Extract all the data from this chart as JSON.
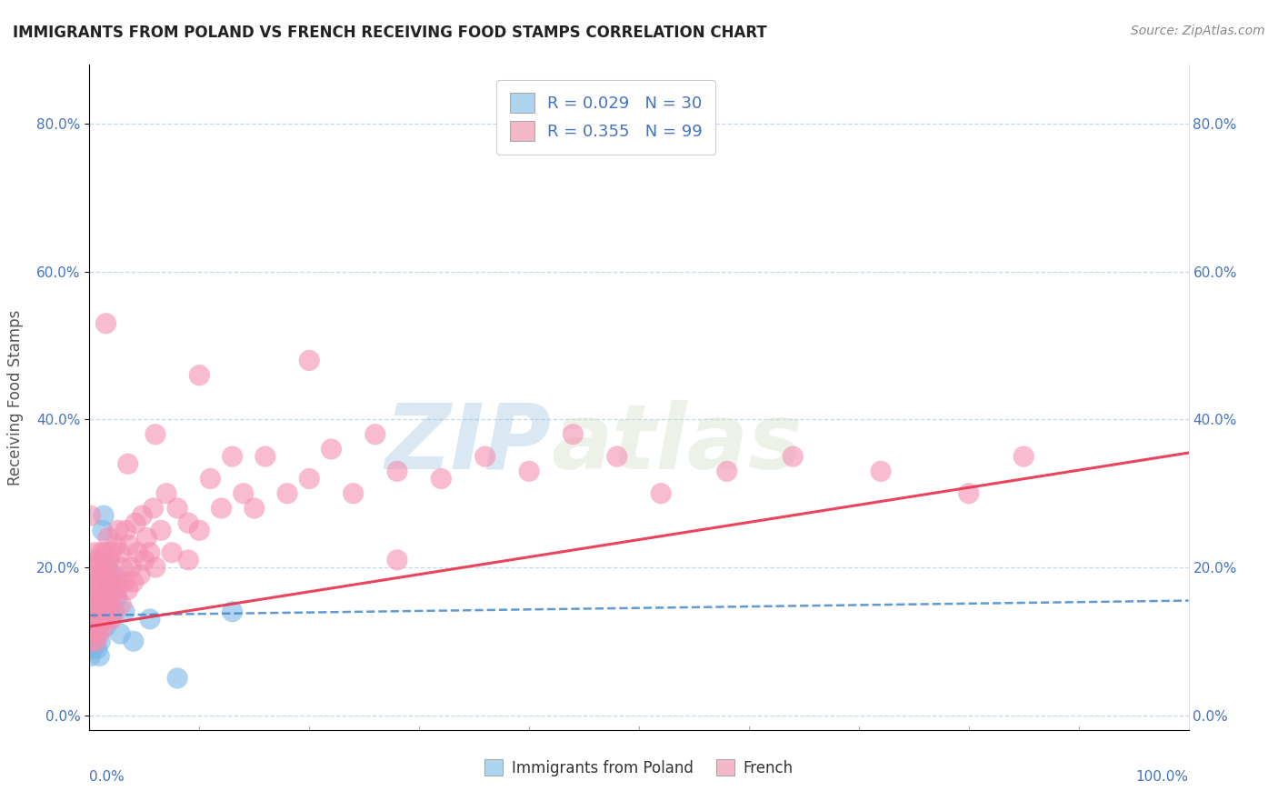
{
  "title": "IMMIGRANTS FROM POLAND VS FRENCH RECEIVING FOOD STAMPS CORRELATION CHART",
  "source": "Source: ZipAtlas.com",
  "ylabel": "Receiving Food Stamps",
  "yticks": [
    "0.0%",
    "20.0%",
    "40.0%",
    "60.0%",
    "80.0%"
  ],
  "ytick_vals": [
    0.0,
    0.2,
    0.4,
    0.6,
    0.8
  ],
  "legend_label1": "Immigrants from Poland",
  "legend_label2": "French",
  "poland_color": "#7ab8e8",
  "poland_color_light": "#aed4f0",
  "french_color": "#f48fb1",
  "french_color_light": "#f4b8c8",
  "trend_poland_color": "#4488cc",
  "trend_french_color": "#e8304a",
  "background_color": "#ffffff",
  "watermark_zip": "ZIP",
  "watermark_atlas": "atlas",
  "poland_x": [
    0.001,
    0.002,
    0.003,
    0.003,
    0.004,
    0.004,
    0.005,
    0.005,
    0.006,
    0.006,
    0.007,
    0.008,
    0.009,
    0.01,
    0.01,
    0.011,
    0.012,
    0.013,
    0.015,
    0.016,
    0.018,
    0.02,
    0.022,
    0.025,
    0.028,
    0.032,
    0.04,
    0.055,
    0.08,
    0.13
  ],
  "poland_y": [
    0.08,
    0.11,
    0.13,
    0.09,
    0.12,
    0.14,
    0.1,
    0.15,
    0.11,
    0.13,
    0.09,
    0.12,
    0.08,
    0.13,
    0.1,
    0.14,
    0.25,
    0.27,
    0.12,
    0.2,
    0.17,
    0.19,
    0.14,
    0.16,
    0.11,
    0.14,
    0.1,
    0.13,
    0.05,
    0.14
  ],
  "french_x": [
    0.001,
    0.001,
    0.002,
    0.002,
    0.003,
    0.003,
    0.003,
    0.004,
    0.004,
    0.005,
    0.005,
    0.005,
    0.006,
    0.006,
    0.007,
    0.007,
    0.008,
    0.008,
    0.009,
    0.009,
    0.01,
    0.01,
    0.011,
    0.011,
    0.012,
    0.012,
    0.013,
    0.014,
    0.014,
    0.015,
    0.015,
    0.016,
    0.017,
    0.018,
    0.018,
    0.019,
    0.02,
    0.02,
    0.021,
    0.022,
    0.023,
    0.024,
    0.025,
    0.026,
    0.027,
    0.028,
    0.029,
    0.03,
    0.032,
    0.033,
    0.035,
    0.036,
    0.038,
    0.04,
    0.042,
    0.044,
    0.046,
    0.048,
    0.05,
    0.052,
    0.055,
    0.058,
    0.06,
    0.065,
    0.07,
    0.075,
    0.08,
    0.09,
    0.1,
    0.11,
    0.12,
    0.13,
    0.14,
    0.15,
    0.16,
    0.18,
    0.2,
    0.22,
    0.24,
    0.26,
    0.28,
    0.32,
    0.36,
    0.4,
    0.44,
    0.48,
    0.52,
    0.58,
    0.64,
    0.72,
    0.8,
    0.85,
    0.09,
    0.015,
    0.28,
    0.1,
    0.06,
    0.035,
    0.2
  ],
  "french_y": [
    0.13,
    0.27,
    0.1,
    0.15,
    0.12,
    0.16,
    0.2,
    0.11,
    0.18,
    0.13,
    0.17,
    0.22,
    0.1,
    0.16,
    0.12,
    0.19,
    0.14,
    0.21,
    0.11,
    0.18,
    0.13,
    0.2,
    0.15,
    0.22,
    0.12,
    0.19,
    0.16,
    0.14,
    0.22,
    0.13,
    0.2,
    0.17,
    0.24,
    0.15,
    0.21,
    0.18,
    0.13,
    0.22,
    0.16,
    0.19,
    0.14,
    0.23,
    0.17,
    0.25,
    0.18,
    0.22,
    0.15,
    0.2,
    0.18,
    0.25,
    0.17,
    0.23,
    0.2,
    0.18,
    0.26,
    0.22,
    0.19,
    0.27,
    0.21,
    0.24,
    0.22,
    0.28,
    0.2,
    0.25,
    0.3,
    0.22,
    0.28,
    0.26,
    0.25,
    0.32,
    0.28,
    0.35,
    0.3,
    0.28,
    0.35,
    0.3,
    0.32,
    0.36,
    0.3,
    0.38,
    0.33,
    0.32,
    0.35,
    0.33,
    0.38,
    0.35,
    0.3,
    0.33,
    0.35,
    0.33,
    0.3,
    0.35,
    0.21,
    0.53,
    0.21,
    0.46,
    0.38,
    0.34,
    0.48
  ],
  "xlim": [
    0.0,
    1.0
  ],
  "ylim": [
    -0.02,
    0.88
  ],
  "trend_x_start": 0.0,
  "trend_x_end": 1.0,
  "french_trend_y0": 0.12,
  "french_trend_y1": 0.355,
  "poland_trend_y0": 0.135,
  "poland_trend_y1": 0.155
}
